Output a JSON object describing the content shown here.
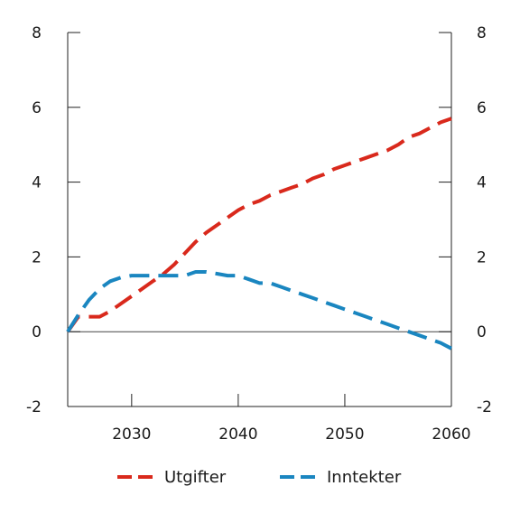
{
  "chart_data": {
    "type": "line",
    "title": "",
    "xlabel": "",
    "ylabel": "",
    "xlim": [
      2024,
      2060
    ],
    "ylim": [
      -2,
      8
    ],
    "xticks": [
      2030,
      2040,
      2050,
      2060
    ],
    "yticks": [
      -2,
      0,
      2,
      4,
      6,
      8
    ],
    "grid": false,
    "zero_line": true,
    "legend_position": "bottom",
    "series": [
      {
        "name": "Utgifter",
        "color": "#d9291c",
        "dash": "dashed",
        "x": [
          2024,
          2025,
          2026,
          2027,
          2028,
          2029,
          2030,
          2031,
          2032,
          2033,
          2034,
          2035,
          2036,
          2037,
          2038,
          2039,
          2040,
          2041,
          2042,
          2043,
          2044,
          2045,
          2046,
          2047,
          2048,
          2049,
          2050,
          2051,
          2052,
          2053,
          2054,
          2055,
          2056,
          2057,
          2058,
          2059,
          2060
        ],
        "y": [
          0.0,
          0.4,
          0.4,
          0.4,
          0.55,
          0.75,
          0.95,
          1.15,
          1.35,
          1.55,
          1.8,
          2.1,
          2.4,
          2.65,
          2.85,
          3.05,
          3.25,
          3.4,
          3.5,
          3.65,
          3.75,
          3.85,
          3.95,
          4.1,
          4.2,
          4.35,
          4.45,
          4.55,
          4.65,
          4.75,
          4.85,
          5.0,
          5.2,
          5.3,
          5.45,
          5.6,
          5.7
        ]
      },
      {
        "name": "Inntekter",
        "color": "#1a86c0",
        "dash": "dashed",
        "x": [
          2024,
          2025,
          2026,
          2027,
          2028,
          2029,
          2030,
          2031,
          2032,
          2033,
          2034,
          2035,
          2036,
          2037,
          2038,
          2039,
          2040,
          2041,
          2042,
          2043,
          2044,
          2045,
          2046,
          2047,
          2048,
          2049,
          2050,
          2051,
          2052,
          2053,
          2054,
          2055,
          2056,
          2057,
          2058,
          2059,
          2060
        ],
        "y": [
          0.0,
          0.45,
          0.85,
          1.15,
          1.35,
          1.45,
          1.5,
          1.5,
          1.5,
          1.5,
          1.5,
          1.5,
          1.6,
          1.6,
          1.55,
          1.5,
          1.5,
          1.4,
          1.3,
          1.3,
          1.2,
          1.1,
          1.0,
          0.9,
          0.8,
          0.7,
          0.6,
          0.5,
          0.4,
          0.3,
          0.2,
          0.1,
          0.0,
          -0.1,
          -0.2,
          -0.3,
          -0.45
        ]
      }
    ]
  }
}
